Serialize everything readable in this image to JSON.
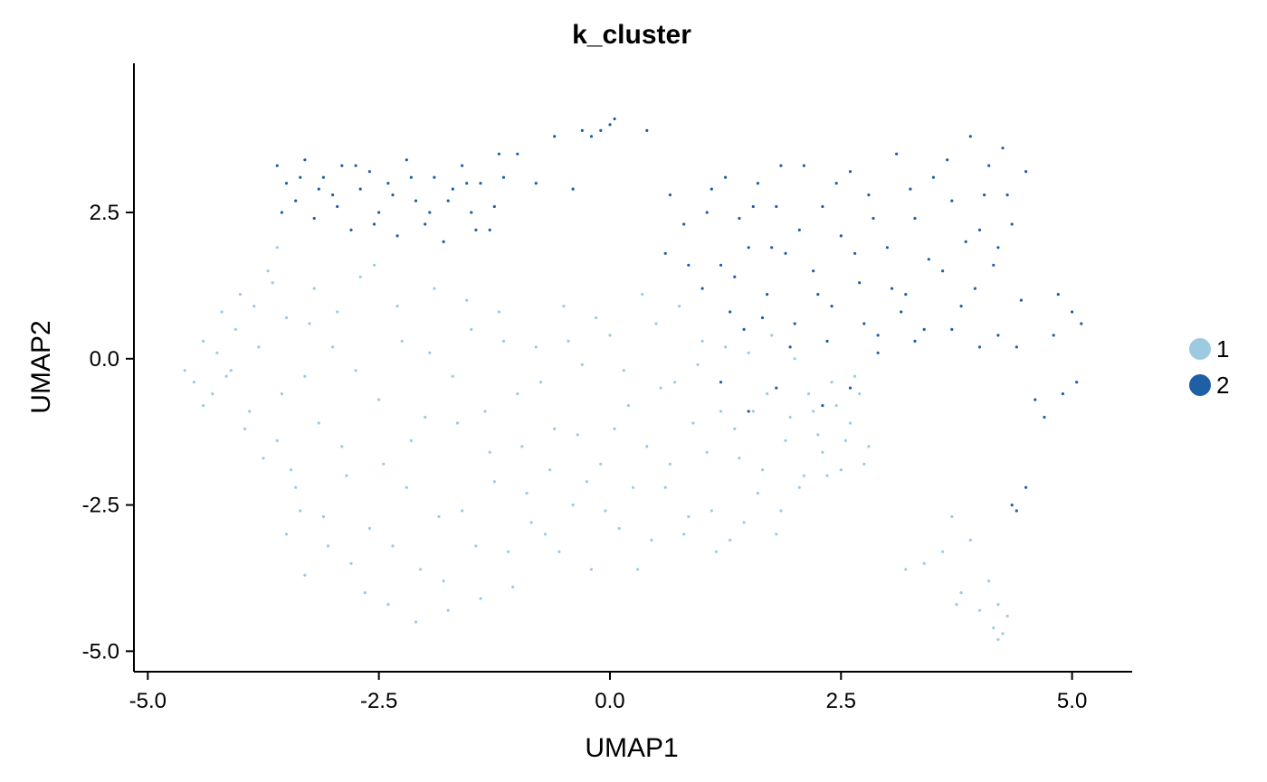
{
  "chart_data": {
    "type": "scatter",
    "title": "k_cluster",
    "xlabel": "UMAP1",
    "ylabel": "UMAP2",
    "xlim": [
      -5.15,
      5.65
    ],
    "ylim": [
      -5.35,
      5.05
    ],
    "xticks": [
      -5.0,
      -2.5,
      0.0,
      2.5,
      5.0
    ],
    "xtick_labels": [
      "-5.0",
      "-2.5",
      "0.0",
      "2.5",
      "5.0"
    ],
    "yticks": [
      -5.0,
      -2.5,
      0.0,
      2.5
    ],
    "ytick_labels": [
      "-5.0",
      "-2.5",
      "0.0",
      "2.5"
    ],
    "grid": false,
    "legend_position": "right",
    "series": [
      {
        "name": "1",
        "color": "#9ecae1",
        "points": [
          [
            -4.6,
            -0.2
          ],
          [
            -4.5,
            -0.4
          ],
          [
            -4.4,
            0.3
          ],
          [
            -4.3,
            -0.6
          ],
          [
            -4.2,
            0.8
          ],
          [
            -4.1,
            -0.2
          ],
          [
            -4.0,
            1.1
          ],
          [
            -3.9,
            -0.9
          ],
          [
            -3.8,
            0.2
          ],
          [
            -3.7,
            1.5
          ],
          [
            -3.6,
            -1.4
          ],
          [
            -3.5,
            0.7
          ],
          [
            -3.6,
            1.9
          ],
          [
            -3.4,
            -2.2
          ],
          [
            -3.3,
            -0.3
          ],
          [
            -3.2,
            1.2
          ],
          [
            -3.5,
            -3.0
          ],
          [
            -3.3,
            -3.7
          ],
          [
            -3.1,
            -2.7
          ],
          [
            -3.0,
            0.2
          ],
          [
            -2.9,
            -1.5
          ],
          [
            -2.8,
            -3.5
          ],
          [
            -2.7,
            1.4
          ],
          [
            -2.6,
            -2.9
          ],
          [
            -2.5,
            -0.7
          ],
          [
            -2.4,
            -4.2
          ],
          [
            -2.3,
            0.9
          ],
          [
            -2.2,
            -2.2
          ],
          [
            -2.1,
            -4.5
          ],
          [
            -2.0,
            -1.0
          ],
          [
            -1.9,
            1.2
          ],
          [
            -1.8,
            -3.8
          ],
          [
            -1.7,
            -0.3
          ],
          [
            -1.6,
            -2.6
          ],
          [
            -1.5,
            0.5
          ],
          [
            -1.4,
            -4.1
          ],
          [
            -1.3,
            -1.6
          ],
          [
            -1.2,
            0.8
          ],
          [
            -1.1,
            -3.3
          ],
          [
            -1.0,
            -0.6
          ],
          [
            -0.9,
            -2.3
          ],
          [
            -0.8,
            0.2
          ],
          [
            -0.7,
            -3.0
          ],
          [
            -0.6,
            -1.2
          ],
          [
            -0.5,
            0.9
          ],
          [
            -0.4,
            -2.5
          ],
          [
            -0.3,
            -0.1
          ],
          [
            -0.2,
            -3.6
          ],
          [
            -0.1,
            -1.8
          ],
          [
            0.0,
            0.4
          ],
          [
            0.1,
            -2.9
          ],
          [
            0.2,
            -0.8
          ],
          [
            0.3,
            -3.6
          ],
          [
            0.4,
            -1.5
          ],
          [
            0.5,
            0.6
          ],
          [
            0.6,
            -2.2
          ],
          [
            0.7,
            -0.4
          ],
          [
            0.8,
            -3.0
          ],
          [
            0.9,
            -1.1
          ],
          [
            1.0,
            0.3
          ],
          [
            1.1,
            -2.6
          ],
          [
            1.2,
            -0.9
          ],
          [
            1.3,
            -3.1
          ],
          [
            1.4,
            -1.7
          ],
          [
            1.5,
            0.1
          ],
          [
            1.6,
            -2.3
          ],
          [
            1.7,
            -0.6
          ],
          [
            1.8,
            -3.0
          ],
          [
            1.9,
            -1.4
          ],
          [
            2.0,
            0.0
          ],
          [
            2.1,
            -2.0
          ],
          [
            2.2,
            -0.9
          ],
          [
            2.3,
            -1.6
          ],
          [
            2.4,
            -0.4
          ],
          [
            2.5,
            -1.9
          ],
          [
            2.6,
            -1.1
          ],
          [
            2.7,
            -0.6
          ],
          [
            2.8,
            -1.5
          ],
          [
            3.2,
            -3.6
          ],
          [
            3.4,
            -3.5
          ],
          [
            3.6,
            -3.3
          ],
          [
            3.7,
            -2.7
          ],
          [
            3.8,
            -4.0
          ],
          [
            3.9,
            -3.1
          ],
          [
            4.0,
            -4.3
          ],
          [
            4.1,
            -3.8
          ],
          [
            4.15,
            -4.6
          ],
          [
            4.2,
            -4.8
          ],
          [
            4.3,
            -4.4
          ],
          [
            4.2,
            -4.2
          ],
          [
            4.25,
            -4.7
          ],
          [
            3.75,
            -4.2
          ],
          [
            -4.4,
            -0.8
          ],
          [
            -4.25,
            0.1
          ],
          [
            -4.15,
            -0.3
          ],
          [
            -4.05,
            0.5
          ],
          [
            -3.95,
            -1.2
          ],
          [
            -3.85,
            0.9
          ],
          [
            -3.75,
            -1.7
          ],
          [
            -3.65,
            1.3
          ],
          [
            -3.55,
            -0.6
          ],
          [
            -3.45,
            -1.9
          ],
          [
            -3.35,
            -2.6
          ],
          [
            -3.25,
            0.6
          ],
          [
            -3.15,
            -1.1
          ],
          [
            -3.05,
            -3.2
          ],
          [
            -2.95,
            0.8
          ],
          [
            -2.85,
            -2.0
          ],
          [
            -2.75,
            -0.2
          ],
          [
            -2.65,
            -4.0
          ],
          [
            -2.55,
            1.6
          ],
          [
            -2.45,
            -1.8
          ],
          [
            -2.35,
            -3.2
          ],
          [
            -2.25,
            0.3
          ],
          [
            -2.15,
            -1.4
          ],
          [
            -2.05,
            -3.6
          ],
          [
            -1.95,
            0.1
          ],
          [
            -1.85,
            -2.7
          ],
          [
            -1.75,
            -4.3
          ],
          [
            -1.65,
            -1.1
          ],
          [
            -1.55,
            1.0
          ],
          [
            -1.45,
            -3.2
          ],
          [
            -1.35,
            -0.9
          ],
          [
            -1.25,
            -2.1
          ],
          [
            -1.15,
            0.3
          ],
          [
            -1.05,
            -3.9
          ],
          [
            -0.95,
            -1.5
          ],
          [
            -0.85,
            -2.8
          ],
          [
            -0.75,
            -0.4
          ],
          [
            -0.65,
            -1.9
          ],
          [
            -0.55,
            -3.3
          ],
          [
            -0.45,
            0.3
          ],
          [
            -0.35,
            -1.3
          ],
          [
            -0.25,
            -2.1
          ],
          [
            -0.15,
            0.7
          ],
          [
            -0.05,
            -2.6
          ],
          [
            0.05,
            -1.2
          ],
          [
            0.15,
            -0.2
          ],
          [
            0.25,
            -2.2
          ],
          [
            0.35,
            1.1
          ],
          [
            0.45,
            -3.1
          ],
          [
            0.55,
            -0.5
          ],
          [
            0.65,
            -1.8
          ],
          [
            0.75,
            0.9
          ],
          [
            0.85,
            -2.7
          ],
          [
            0.95,
            -0.1
          ],
          [
            1.05,
            -1.6
          ],
          [
            1.15,
            -3.3
          ],
          [
            1.25,
            0.2
          ],
          [
            1.35,
            -1.2
          ],
          [
            1.45,
            -2.8
          ],
          [
            1.55,
            -0.9
          ],
          [
            1.65,
            -1.9
          ],
          [
            1.75,
            0.4
          ],
          [
            1.85,
            -2.6
          ],
          [
            1.95,
            -1.0
          ],
          [
            2.05,
            -2.2
          ],
          [
            2.15,
            -0.6
          ],
          [
            2.25,
            -1.3
          ],
          [
            2.35,
            -2.0
          ],
          [
            2.45,
            -0.8
          ],
          [
            2.55,
            -1.4
          ],
          [
            2.65,
            -0.3
          ],
          [
            2.75,
            -1.8
          ]
        ]
      },
      {
        "name": "2",
        "color": "#1f5fa6",
        "points": [
          [
            -3.6,
            3.3
          ],
          [
            -3.5,
            3.0
          ],
          [
            -3.4,
            2.7
          ],
          [
            -3.3,
            3.4
          ],
          [
            -3.2,
            2.4
          ],
          [
            -3.1,
            3.1
          ],
          [
            -3.0,
            2.8
          ],
          [
            -2.9,
            3.3
          ],
          [
            -2.8,
            2.2
          ],
          [
            -2.7,
            2.9
          ],
          [
            -2.6,
            3.2
          ],
          [
            -2.5,
            2.5
          ],
          [
            -2.4,
            3.0
          ],
          [
            -2.3,
            2.1
          ],
          [
            -2.2,
            3.4
          ],
          [
            -2.1,
            2.7
          ],
          [
            -2.0,
            2.3
          ],
          [
            -1.9,
            3.1
          ],
          [
            -1.8,
            2.0
          ],
          [
            -1.7,
            2.9
          ],
          [
            -1.6,
            3.3
          ],
          [
            -1.5,
            2.5
          ],
          [
            -1.4,
            3.0
          ],
          [
            -1.3,
            2.2
          ],
          [
            -1.2,
            3.5
          ],
          [
            -1.0,
            3.5
          ],
          [
            -0.8,
            3.0
          ],
          [
            -0.6,
            3.8
          ],
          [
            -0.4,
            2.9
          ],
          [
            -0.3,
            3.9
          ],
          [
            -0.2,
            3.8
          ],
          [
            -0.1,
            3.9
          ],
          [
            0.0,
            4.0
          ],
          [
            0.05,
            4.1
          ],
          [
            0.4,
            3.9
          ],
          [
            0.6,
            1.8
          ],
          [
            0.8,
            2.3
          ],
          [
            1.0,
            1.2
          ],
          [
            1.1,
            2.9
          ],
          [
            1.2,
            1.6
          ],
          [
            1.3,
            0.8
          ],
          [
            1.4,
            2.4
          ],
          [
            1.5,
            1.9
          ],
          [
            1.6,
            3.0
          ],
          [
            1.7,
            1.1
          ],
          [
            1.8,
            2.6
          ],
          [
            1.9,
            1.8
          ],
          [
            2.0,
            0.6
          ],
          [
            2.1,
            3.3
          ],
          [
            2.2,
            1.5
          ],
          [
            2.3,
            2.6
          ],
          [
            2.4,
            0.9
          ],
          [
            2.5,
            2.1
          ],
          [
            2.6,
            3.2
          ],
          [
            2.7,
            1.3
          ],
          [
            2.8,
            2.8
          ],
          [
            2.9,
            0.4
          ],
          [
            3.0,
            1.9
          ],
          [
            3.1,
            3.5
          ],
          [
            3.2,
            1.1
          ],
          [
            3.3,
            2.4
          ],
          [
            3.4,
            0.5
          ],
          [
            3.5,
            3.1
          ],
          [
            3.6,
            1.5
          ],
          [
            3.7,
            2.7
          ],
          [
            3.8,
            0.9
          ],
          [
            3.9,
            3.8
          ],
          [
            4.0,
            2.2
          ],
          [
            4.1,
            3.3
          ],
          [
            4.2,
            1.9
          ],
          [
            4.3,
            2.8
          ],
          [
            4.4,
            0.2
          ],
          [
            4.5,
            3.2
          ],
          [
            4.6,
            -0.7
          ],
          [
            4.7,
            -1.0
          ],
          [
            4.8,
            0.4
          ],
          [
            4.9,
            -0.6
          ],
          [
            5.0,
            0.8
          ],
          [
            5.05,
            -0.4
          ],
          [
            5.1,
            0.6
          ],
          [
            4.85,
            1.1
          ],
          [
            4.4,
            -2.6
          ],
          [
            4.5,
            -2.2
          ],
          [
            4.35,
            -2.5
          ],
          [
            2.3,
            -0.8
          ],
          [
            2.6,
            -0.5
          ],
          [
            2.9,
            0.1
          ],
          [
            3.3,
            0.3
          ],
          [
            3.7,
            0.5
          ],
          [
            4.0,
            0.2
          ],
          [
            4.2,
            0.4
          ],
          [
            1.8,
            -0.5
          ],
          [
            1.5,
            -0.9
          ],
          [
            1.2,
            -0.4
          ],
          [
            -3.55,
            2.5
          ],
          [
            -3.35,
            3.1
          ],
          [
            -3.15,
            2.9
          ],
          [
            -2.95,
            2.6
          ],
          [
            -2.75,
            3.3
          ],
          [
            -2.55,
            2.3
          ],
          [
            -2.35,
            2.8
          ],
          [
            -2.15,
            3.1
          ],
          [
            -1.95,
            2.5
          ],
          [
            -1.75,
            2.7
          ],
          [
            -1.55,
            3.0
          ],
          [
            -1.45,
            2.2
          ],
          [
            -1.25,
            2.6
          ],
          [
            -1.15,
            3.1
          ],
          [
            0.65,
            2.8
          ],
          [
            0.85,
            1.6
          ],
          [
            1.05,
            2.5
          ],
          [
            1.25,
            3.1
          ],
          [
            1.35,
            1.4
          ],
          [
            1.55,
            2.6
          ],
          [
            1.75,
            1.9
          ],
          [
            1.85,
            3.3
          ],
          [
            2.05,
            2.2
          ],
          [
            2.25,
            1.1
          ],
          [
            2.45,
            3.0
          ],
          [
            2.65,
            1.8
          ],
          [
            2.85,
            2.4
          ],
          [
            3.05,
            1.2
          ],
          [
            3.25,
            2.9
          ],
          [
            3.45,
            1.7
          ],
          [
            3.65,
            3.4
          ],
          [
            3.85,
            2.0
          ],
          [
            3.95,
            1.2
          ],
          [
            4.05,
            2.8
          ],
          [
            4.15,
            1.6
          ],
          [
            4.25,
            3.6
          ],
          [
            4.35,
            2.3
          ],
          [
            4.45,
            1.0
          ],
          [
            3.15,
            0.8
          ],
          [
            2.75,
            0.6
          ],
          [
            2.35,
            0.3
          ],
          [
            1.95,
            0.2
          ],
          [
            1.65,
            0.7
          ],
          [
            1.45,
            0.5
          ]
        ]
      }
    ]
  }
}
